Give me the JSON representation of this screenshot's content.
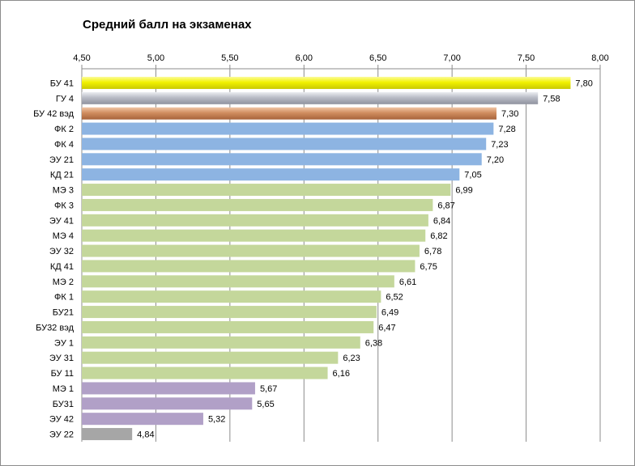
{
  "chart_data": {
    "type": "bar",
    "orientation": "horizontal",
    "title": "Средний балл на экзаменах",
    "xlim": [
      4.5,
      8.0
    ],
    "ticks": [
      "4,50",
      "5,00",
      "5,50",
      "6,00",
      "6,50",
      "7,00",
      "7,50",
      "8,00"
    ],
    "tick_values": [
      4.5,
      5.0,
      5.5,
      6.0,
      6.5,
      7.0,
      7.5,
      8.0
    ],
    "grid": true,
    "axis_position": "top",
    "categories": [
      "БУ 41",
      "ГУ 4",
      "БУ 42 вэд",
      "ФК 2",
      "ФК 4",
      "ЭУ 21",
      "КД 21",
      "МЭ 3",
      "ФК 3",
      "ЭУ 41",
      "МЭ 4",
      "ЭУ 32",
      "КД 41",
      "МЭ 2",
      "ФК 1",
      "БУ21",
      "БУ32 вэд",
      "ЭУ 1",
      "ЭУ 31",
      "БУ 11",
      "МЭ 1",
      "БУ31",
      "ЭУ 42",
      "ЭУ 22"
    ],
    "values": [
      7.8,
      7.58,
      7.3,
      7.28,
      7.23,
      7.2,
      7.05,
      6.99,
      6.87,
      6.84,
      6.82,
      6.78,
      6.75,
      6.61,
      6.52,
      6.49,
      6.47,
      6.38,
      6.23,
      6.16,
      5.67,
      5.65,
      5.32,
      4.84
    ],
    "labels": [
      "7,80",
      "7,58",
      "7,30",
      "7,28",
      "7,23",
      "7,20",
      "7,05",
      "6,99",
      "6,87",
      "6,84",
      "6,82",
      "6,78",
      "6,75",
      "6,61",
      "6,52",
      "6,49",
      "6,47",
      "6,38",
      "6,23",
      "6,16",
      "5,67",
      "5,65",
      "5,32",
      "4,84"
    ],
    "colors": [
      "#e6e600",
      "#a8acb8",
      "#c8855a",
      "#8db4e2",
      "#8db4e2",
      "#8db4e2",
      "#8db4e2",
      "#c4d79b",
      "#c4d79b",
      "#c4d79b",
      "#c4d79b",
      "#c4d79b",
      "#c4d79b",
      "#c4d79b",
      "#c4d79b",
      "#c4d79b",
      "#c4d79b",
      "#c4d79b",
      "#c4d79b",
      "#c4d79b",
      "#b1a0c7",
      "#b1a0c7",
      "#b1a0c7",
      "#a6a6a6"
    ]
  }
}
